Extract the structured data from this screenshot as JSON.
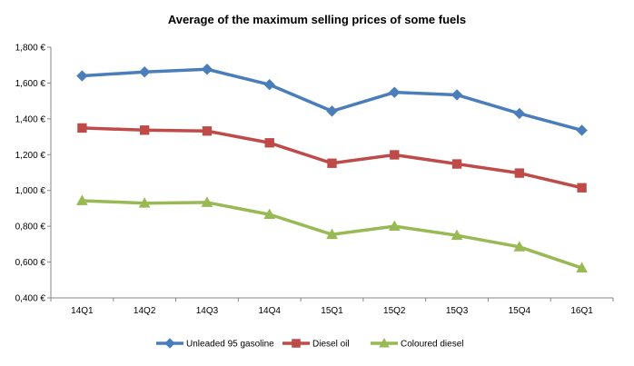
{
  "chart_data": {
    "type": "line",
    "title": "Average of the maximum selling prices of some fuels",
    "categories": [
      "14Q1",
      "14Q2",
      "14Q3",
      "14Q4",
      "15Q1",
      "15Q2",
      "15Q3",
      "15Q4",
      "16Q1"
    ],
    "y_ticks": [
      "1,800 €",
      "1,600 €",
      "1,400 €",
      "1,200 €",
      "1,000 €",
      "0,800 €",
      "0,600 €",
      "0,400 €"
    ],
    "ylim": [
      0.4,
      1.8
    ],
    "grid": false,
    "legend_position": "bottom",
    "series": [
      {
        "name": "Unleaded 95 gasoline",
        "color": "#4a7ebb",
        "marker": "diamond",
        "values": [
          1.64,
          1.662,
          1.677,
          1.591,
          1.443,
          1.548,
          1.534,
          1.43,
          1.336
        ]
      },
      {
        "name": "Diesel oil",
        "color": "#be4b48",
        "marker": "square",
        "values": [
          1.349,
          1.337,
          1.332,
          1.266,
          1.152,
          1.199,
          1.148,
          1.097,
          1.015
        ]
      },
      {
        "name": "Coloured diesel",
        "color": "#98b954",
        "marker": "triangle",
        "values": [
          0.943,
          0.929,
          0.933,
          0.866,
          0.754,
          0.8,
          0.749,
          0.685,
          0.567
        ]
      }
    ]
  }
}
